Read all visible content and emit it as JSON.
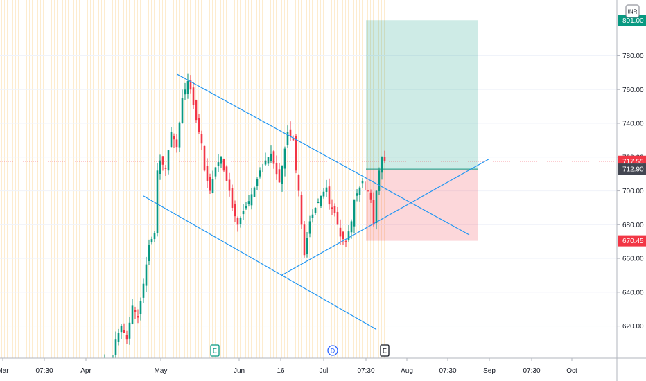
{
  "header": {
    "currency_label": "INR"
  },
  "chart_data": {
    "type": "candlestick",
    "ylim": [
      601,
      813
    ],
    "x_labels": [
      "Mar",
      "07:30",
      "Apr",
      "May",
      "Jun",
      "16",
      "Jul",
      "07:30",
      "Aug",
      "07:30",
      "Sep",
      "07:30",
      "Oct"
    ],
    "y_ticks": [
      "620.00",
      "640.00",
      "660.00",
      "680.00",
      "700.00",
      "720.00",
      "740.00",
      "760.00",
      "780.00"
    ],
    "y_tick_values": [
      620,
      640,
      660,
      680,
      700,
      720,
      740,
      760,
      780
    ],
    "price_tags": [
      {
        "label": "801.00",
        "value": 801.0,
        "color": "#089981"
      },
      {
        "label": "717.55",
        "value": 717.55,
        "color": "#f23645"
      },
      {
        "label": "712.90",
        "value": 712.9,
        "color": "#434651"
      },
      {
        "label": "670.45",
        "value": 670.45,
        "color": "#f23645"
      }
    ],
    "current_price": 717.55,
    "position": {
      "target": 801.0,
      "entry": 712.9,
      "stop": 670.45
    },
    "event_markers": [
      {
        "label": "E",
        "color": "#089981"
      },
      {
        "label": "D",
        "color": "#2962ff"
      },
      {
        "label": "E",
        "color": "#131722"
      }
    ],
    "price_path": [
      [
        0,
        600
      ],
      [
        2,
        590
      ],
      [
        4,
        612
      ],
      [
        6,
        620
      ],
      [
        8,
        612
      ],
      [
        10,
        632
      ],
      [
        12,
        625
      ],
      [
        14,
        645
      ],
      [
        16,
        668
      ],
      [
        18,
        675
      ],
      [
        19,
        712
      ],
      [
        20,
        718
      ],
      [
        22,
        713
      ],
      [
        24,
        735
      ],
      [
        26,
        726
      ],
      [
        28,
        755
      ],
      [
        30,
        765
      ],
      [
        31,
        760
      ],
      [
        33,
        742
      ],
      [
        35,
        728
      ],
      [
        36,
        712
      ],
      [
        38,
        700
      ],
      [
        40,
        714
      ],
      [
        42,
        720
      ],
      [
        43,
        712
      ],
      [
        45,
        700
      ],
      [
        46,
        690
      ],
      [
        48,
        680
      ],
      [
        50,
        688
      ],
      [
        52,
        694
      ],
      [
        54,
        702
      ],
      [
        56,
        712
      ],
      [
        58,
        718
      ],
      [
        60,
        722
      ],
      [
        62,
        710
      ],
      [
        63,
        705
      ],
      [
        65,
        725
      ],
      [
        66,
        735
      ],
      [
        68,
        730
      ],
      [
        69,
        712
      ],
      [
        70,
        700
      ],
      [
        71,
        680
      ],
      [
        72,
        662
      ],
      [
        73,
        672
      ],
      [
        74,
        682
      ],
      [
        76,
        690
      ],
      [
        78,
        697
      ],
      [
        80,
        702
      ],
      [
        81,
        692
      ],
      [
        83,
        687
      ],
      [
        84,
        680
      ],
      [
        85,
        673
      ],
      [
        87,
        670
      ],
      [
        89,
        682
      ],
      [
        90,
        695
      ],
      [
        92,
        702
      ],
      [
        93,
        706
      ],
      [
        95,
        700
      ],
      [
        96,
        695
      ],
      [
        97,
        680
      ],
      [
        98,
        700
      ],
      [
        99,
        712
      ],
      [
        100,
        720
      ],
      [
        101,
        717.55
      ]
    ]
  }
}
